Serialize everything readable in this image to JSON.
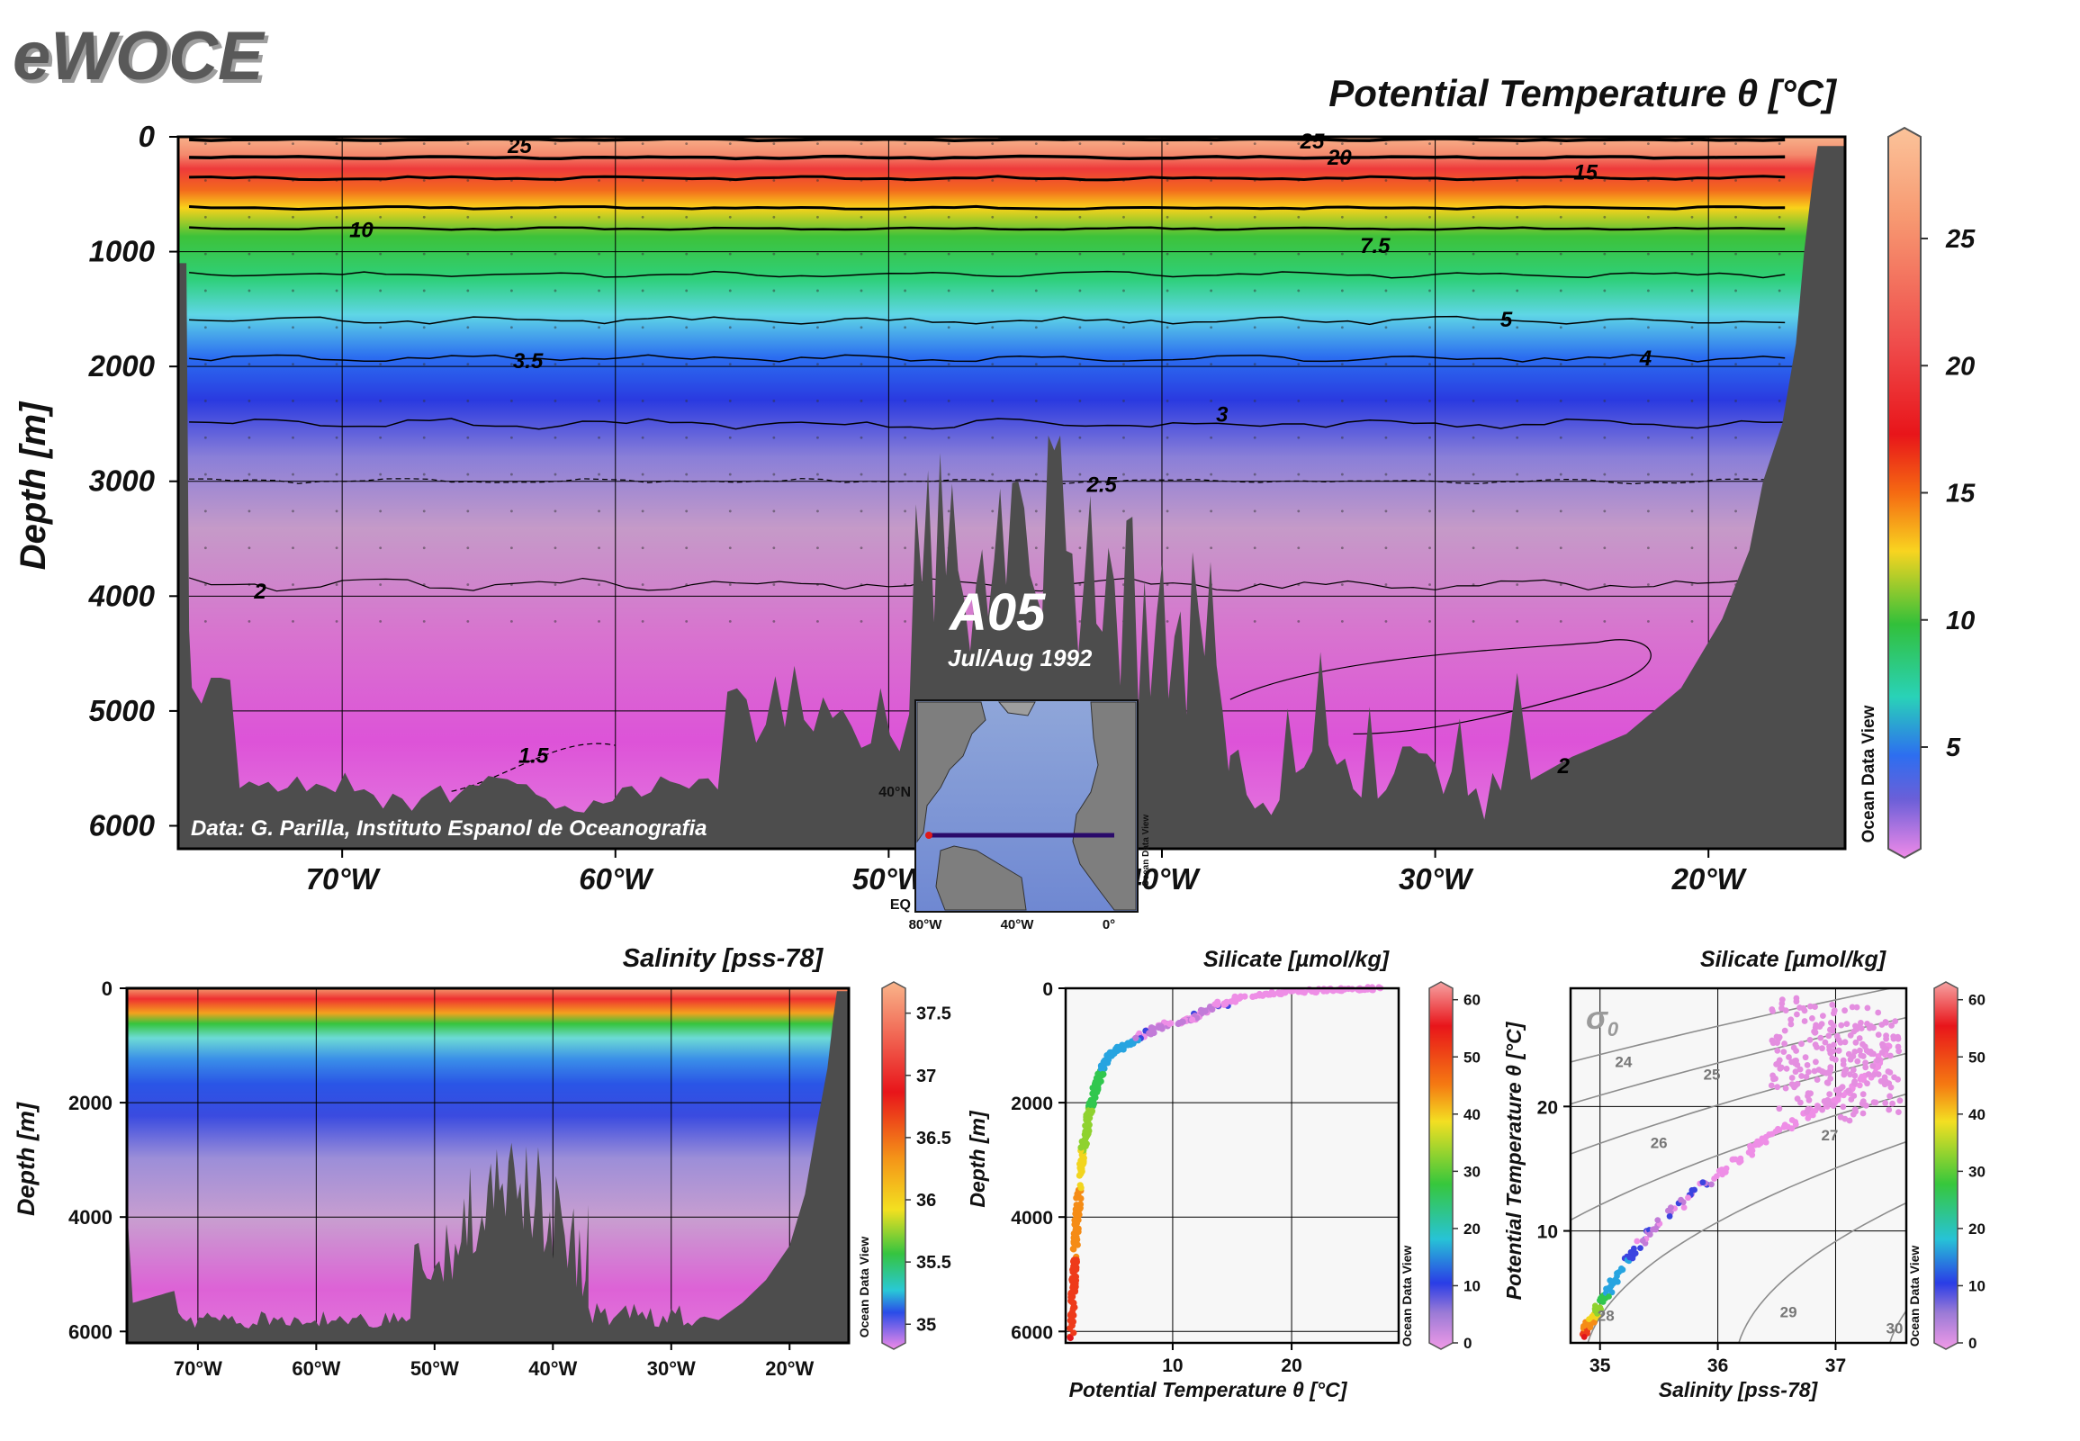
{
  "logo": "eWOCE",
  "main": {
    "title": "Potential Temperature θ [°C]",
    "ylabel": "Depth [m]",
    "credit": "Data: G. Parilla, Instituto Espanol de Oceanografia",
    "section_name": "A05",
    "section_date": "Jul/Aug 1992",
    "watermark": "Ocean Data View",
    "inset": {
      "lat_label": "40°N",
      "eq_label": "EQ",
      "lon_labels": [
        "80°W",
        "40°W",
        "0°"
      ]
    }
  },
  "salinity_panel": {
    "title": "Salinity [pss-78]",
    "ylabel": "Depth [m]",
    "watermark": "Ocean Data View"
  },
  "silicate_depth_panel": {
    "title": "Silicate [µmol/kg]",
    "xlabel": "Potential Temperature θ [°C]",
    "ylabel": "Depth [m]",
    "watermark": "Ocean Data View"
  },
  "ts_panel": {
    "title": "Silicate [µmol/kg]",
    "xlabel": "Salinity [pss-78]",
    "ylabel": "Potential Temperature θ [°C]",
    "sigma_label": "σ",
    "sigma_sub": "0",
    "watermark": "Ocean Data View"
  },
  "chart_data": [
    {
      "type": "heatmap",
      "title": "Potential Temperature θ [°C]",
      "xlabel": "",
      "ylabel": "Depth [m]",
      "x_ticks": [
        "70°W",
        "60°W",
        "50°W",
        "40°W",
        "30°W",
        "20°W"
      ],
      "x_tick_values": [
        -70,
        -60,
        -50,
        -40,
        -30,
        -20
      ],
      "x_range": [
        -76,
        -15
      ],
      "y_ticks": [
        0,
        1000,
        2000,
        3000,
        4000,
        5000,
        6000
      ],
      "y_range": [
        0,
        6200
      ],
      "y_inverted": true,
      "colorbar_ticks": [
        25,
        20,
        15,
        10,
        5
      ],
      "colorbar_range": [
        1,
        29
      ],
      "contour_labels": [
        {
          "text": "25",
          "x": -63.5,
          "y": 80
        },
        {
          "text": "25",
          "x": -34.5,
          "y": 40
        },
        {
          "text": "20",
          "x": -33.5,
          "y": 180
        },
        {
          "text": "15",
          "x": -24.5,
          "y": 310
        },
        {
          "text": "10",
          "x": -69.3,
          "y": 810
        },
        {
          "text": "7.5",
          "x": -32.2,
          "y": 950
        },
        {
          "text": "5",
          "x": -27.4,
          "y": 1590
        },
        {
          "text": "4",
          "x": -22.3,
          "y": 1930
        },
        {
          "text": "3.5",
          "x": -63.2,
          "y": 1950
        },
        {
          "text": "3",
          "x": -37.8,
          "y": 2420
        },
        {
          "text": "2.5",
          "x": -42.2,
          "y": 3030
        },
        {
          "text": "2",
          "x": -73.0,
          "y": 3960
        },
        {
          "text": "1.5",
          "x": -63.0,
          "y": 5390
        },
        {
          "text": "2",
          "x": -25.3,
          "y": 5480
        }
      ],
      "grid": true
    },
    {
      "type": "heatmap",
      "title": "Salinity [pss-78]",
      "xlabel": "",
      "ylabel": "Depth [m]",
      "x_ticks": [
        "70°W",
        "60°W",
        "50°W",
        "40°W",
        "30°W",
        "20°W"
      ],
      "x_tick_values": [
        -70,
        -60,
        -50,
        -40,
        -30,
        -20
      ],
      "x_range": [
        -76,
        -15
      ],
      "y_ticks": [
        0,
        2000,
        4000,
        6000
      ],
      "y_range": [
        0,
        6200
      ],
      "y_inverted": true,
      "colorbar_ticks": [
        37.5,
        37,
        36.5,
        36,
        35.5,
        35
      ],
      "colorbar_range": [
        34.85,
        37.7
      ],
      "grid": true
    },
    {
      "type": "scatter",
      "title": "Silicate [µmol/kg]",
      "xlabel": "Potential Temperature θ [°C]",
      "ylabel": "Depth [m]",
      "x_ticks": [
        10,
        20
      ],
      "x_range": [
        1,
        29
      ],
      "y_ticks": [
        0,
        2000,
        4000,
        6000
      ],
      "y_range": [
        0,
        6200
      ],
      "y_inverted": true,
      "color_variable": "Silicate [µmol/kg]",
      "colorbar_ticks": [
        60,
        50,
        40,
        30,
        20,
        10,
        0
      ],
      "colorbar_range": [
        0,
        62
      ],
      "profile": [
        [
          27.5,
          5
        ],
        [
          24,
          25
        ],
        [
          20,
          60
        ],
        [
          16,
          150
        ],
        [
          13,
          350
        ],
        [
          11.5,
          560
        ],
        [
          9,
          650
        ],
        [
          7,
          880
        ],
        [
          5.5,
          1050
        ],
        [
          4.6,
          1200
        ],
        [
          3.9,
          1500
        ],
        [
          3.3,
          1900
        ],
        [
          2.9,
          2300
        ],
        [
          2.5,
          2800
        ],
        [
          2.2,
          3400
        ],
        [
          2.0,
          3900
        ],
        [
          1.85,
          4400
        ],
        [
          1.7,
          5000
        ],
        [
          1.6,
          5500
        ],
        [
          1.5,
          6100
        ]
      ],
      "grid": true
    },
    {
      "type": "scatter",
      "title": "Silicate [µmol/kg]",
      "xlabel": "Salinity [pss-78]",
      "ylabel": "Potential Temperature θ [°C]",
      "x_ticks": [
        35,
        36,
        37
      ],
      "x_range": [
        34.75,
        37.6
      ],
      "y_ticks": [
        10,
        20
      ],
      "y_range": [
        1,
        29.5
      ],
      "color_variable": "Silicate [µmol/kg]",
      "colorbar_ticks": [
        60,
        50,
        40,
        30,
        20,
        10,
        0
      ],
      "colorbar_range": [
        0,
        62
      ],
      "sigma_isopycnals": [
        24,
        25,
        26,
        27,
        28,
        29,
        30
      ],
      "isopycnal_labels": [
        {
          "text": "24",
          "x": 35.2,
          "y": 23.6
        },
        {
          "text": "25",
          "x": 35.95,
          "y": 22.6
        },
        {
          "text": "26",
          "x": 35.5,
          "y": 17.1
        },
        {
          "text": "27",
          "x": 36.95,
          "y": 17.7
        },
        {
          "text": "28",
          "x": 35.05,
          "y": 3.2
        },
        {
          "text": "29",
          "x": 36.6,
          "y": 3.5
        },
        {
          "text": "30",
          "x": 37.5,
          "y": 2.2
        }
      ],
      "grid": true
    }
  ]
}
